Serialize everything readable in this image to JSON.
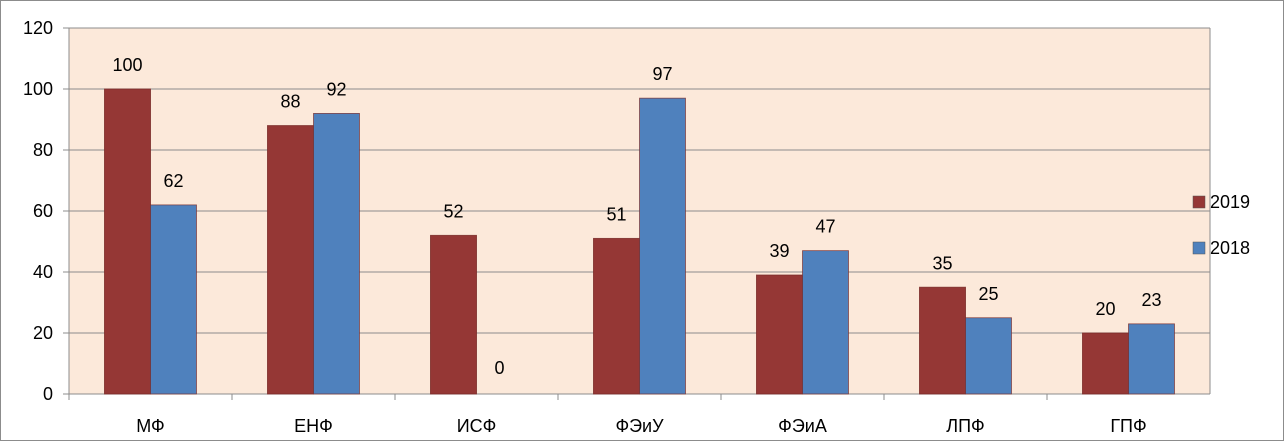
{
  "chart_data": {
    "type": "bar",
    "categories": [
      "МФ",
      "ЕНФ",
      "ИСФ",
      "ФЭиУ",
      "ФЭиА",
      "ЛПФ",
      "ГПФ"
    ],
    "series": [
      {
        "name": "2019",
        "values": [
          100,
          88,
          52,
          51,
          39,
          35,
          20
        ],
        "color": "#953735"
      },
      {
        "name": "2018",
        "values": [
          62,
          92,
          0,
          97,
          47,
          25,
          23
        ],
        "color": "#4f81bd"
      }
    ],
    "ylim": [
      0,
      120
    ],
    "yticks": [
      0,
      20,
      40,
      60,
      80,
      100,
      120
    ],
    "grid": true,
    "legend": "right",
    "plot_background": "#fce9da",
    "gridline_color": "#8c8c8c"
  }
}
